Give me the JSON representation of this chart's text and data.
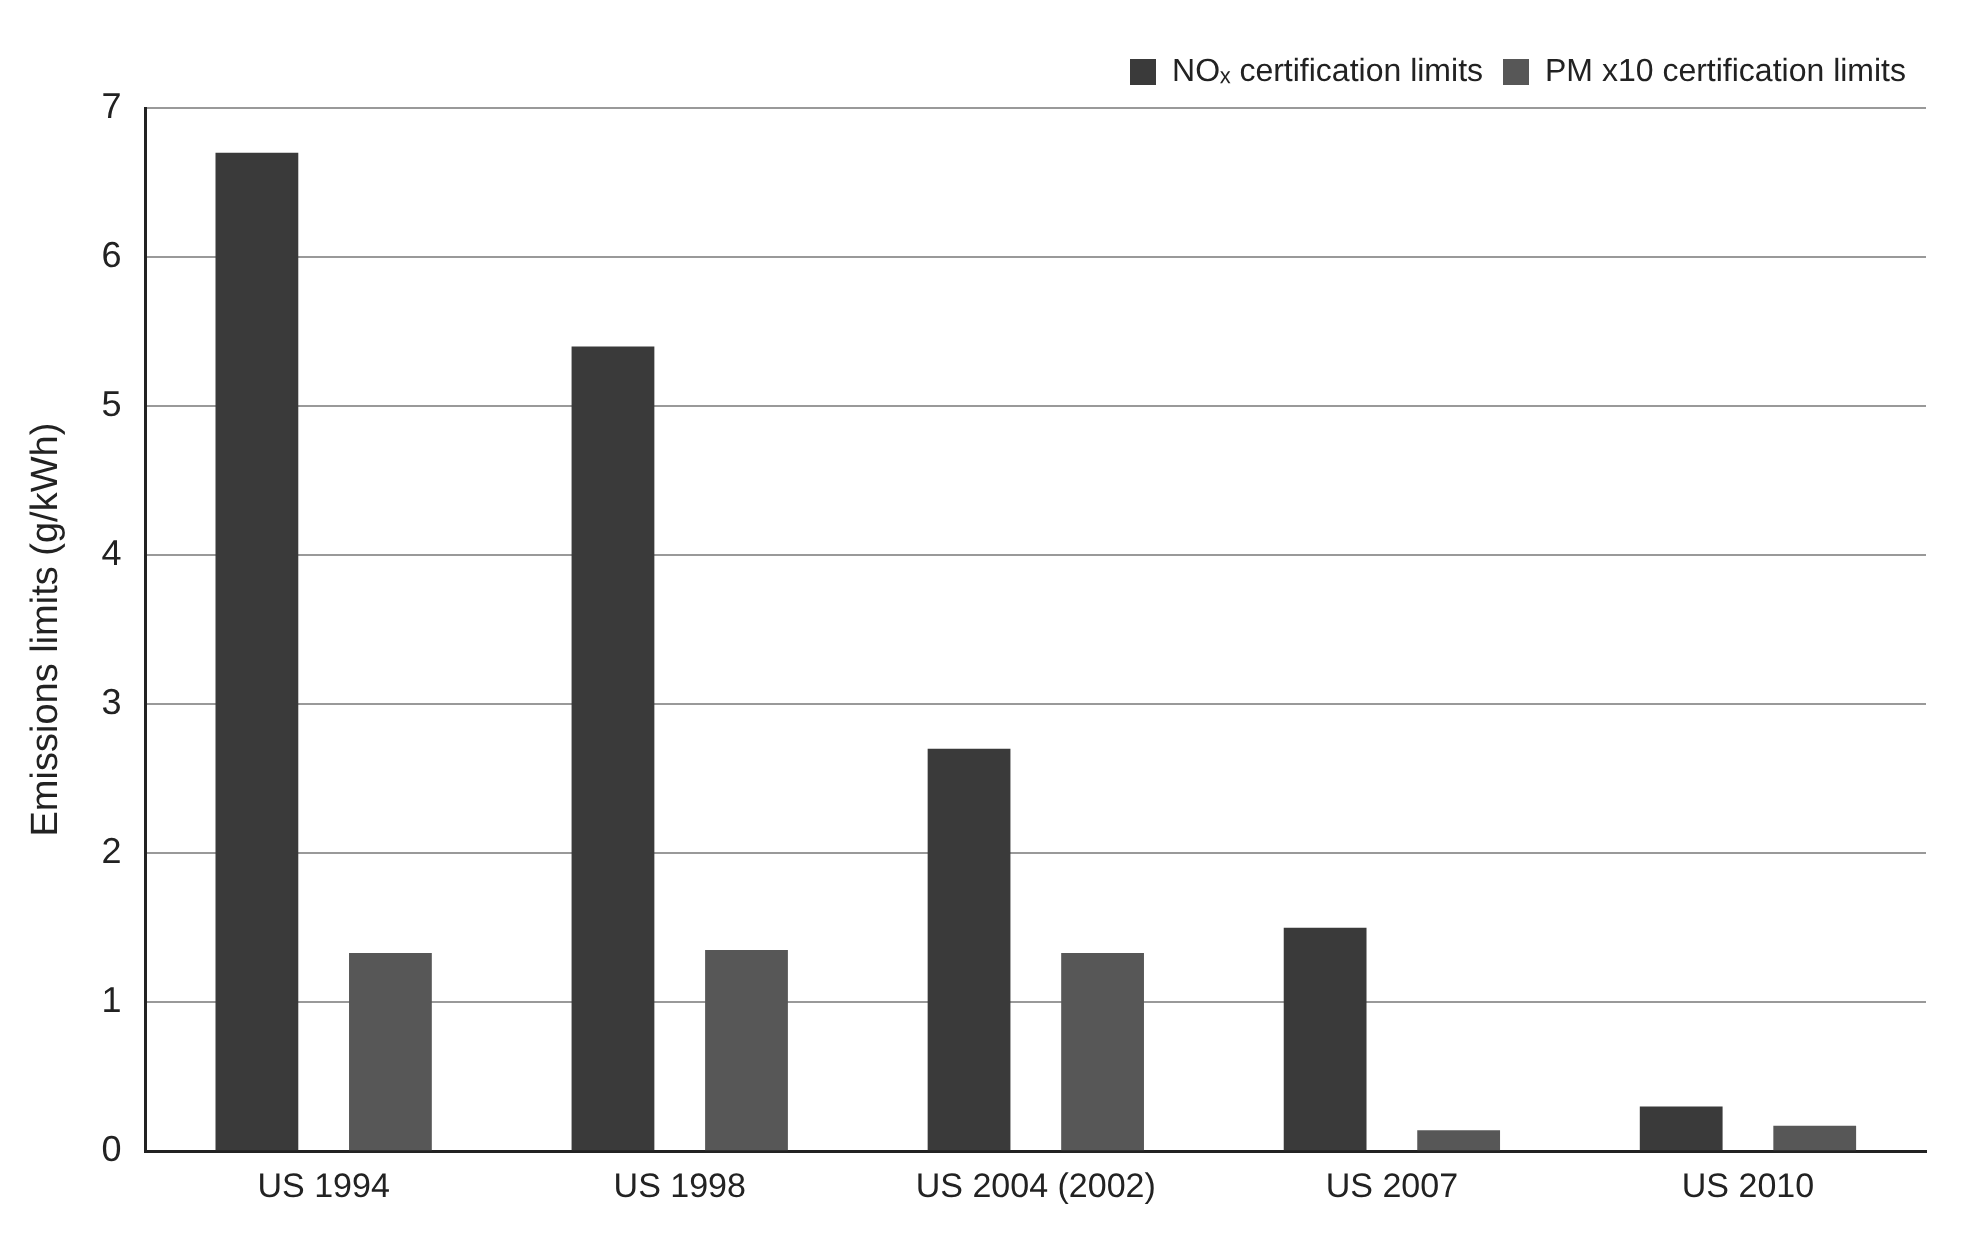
{
  "chart_data": {
    "type": "bar",
    "ylabel": "Emissions limits (g/kWh)",
    "categories": [
      "US 1994",
      "US 1998",
      "US 2004 (2002)",
      "US 2007",
      "US 2010"
    ],
    "series": [
      {
        "name": "NOₓ certification limits",
        "color": "#3a3a3a",
        "values": [
          6.7,
          5.4,
          2.7,
          1.5,
          0.3
        ]
      },
      {
        "name": "PM x10 certification limits",
        "color": "#575757",
        "values": [
          1.33,
          1.35,
          1.33,
          0.14,
          0.17
        ]
      }
    ],
    "ylim": [
      0,
      7
    ],
    "yticks": [
      0,
      1,
      2,
      3,
      4,
      5,
      6,
      7
    ],
    "grid": "y",
    "legend": "top right"
  }
}
